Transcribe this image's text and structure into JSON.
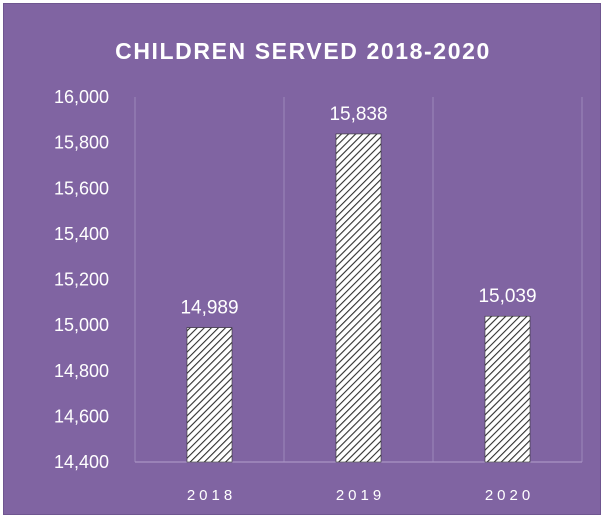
{
  "colors": {
    "background": "#8064a2",
    "bar_fill": "#ffffff",
    "bar_hatch": "#2f2f2f",
    "text": "#ffffff",
    "gridline": "#9d88bb"
  },
  "chart_data": {
    "type": "bar",
    "title": "CHILDREN SERVED 2018-2020",
    "xlabel": "",
    "ylabel": "",
    "categories": [
      "2018",
      "2019",
      "2020"
    ],
    "values": [
      14989,
      15838,
      15039
    ],
    "value_labels": [
      "14,989",
      "15,838",
      "15,039"
    ],
    "ylim": [
      14400,
      16000
    ],
    "y_ticks": [
      14400,
      14600,
      14800,
      15000,
      15200,
      15400,
      15600,
      15800,
      16000
    ],
    "y_tick_labels": [
      "14,400",
      "14,600",
      "14,800",
      "15,000",
      "15,200",
      "15,400",
      "15,600",
      "15,800",
      "16,000"
    ],
    "grid": "vertical-category-separators",
    "legend": "none",
    "bar_pattern": "diagonal-hatch"
  }
}
